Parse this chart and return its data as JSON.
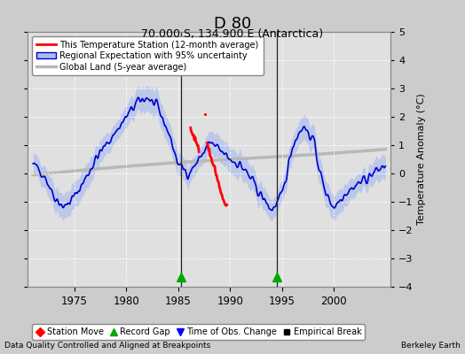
{
  "title": "D 80",
  "subtitle": "70.000 S, 134.900 E (Antarctica)",
  "ylabel": "Temperature Anomaly (°C)",
  "footer_left": "Data Quality Controlled and Aligned at Breakpoints",
  "footer_right": "Berkeley Earth",
  "xlim": [
    1970.5,
    2005.5
  ],
  "ylim": [
    -4,
    5
  ],
  "yticks": [
    -4,
    -3,
    -2,
    -1,
    0,
    1,
    2,
    3,
    4,
    5
  ],
  "xticks": [
    1975,
    1980,
    1985,
    1990,
    1995,
    2000
  ],
  "bg_color": "#cccccc",
  "plot_bg_color": "#e0e0e0",
  "vertical_line_x1": 1985.25,
  "vertical_line_x2": 1994.5,
  "green_tri_x1": 1985.25,
  "green_tri_x2": 1994.5,
  "legend_items": [
    {
      "label": "This Temperature Station (12-month average)",
      "color": "#ff0000",
      "lw": 2
    },
    {
      "label": "Regional Expectation with 95% uncertainty",
      "color": "#0000cc",
      "lw": 1.5
    },
    {
      "label": "Global Land (5-year average)",
      "color": "#b0b0b0",
      "lw": 2
    }
  ],
  "legend2_items": [
    {
      "label": "Station Move",
      "marker": "D",
      "color": "red"
    },
    {
      "label": "Record Gap",
      "marker": "^",
      "color": "green"
    },
    {
      "label": "Time of Obs. Change",
      "marker": "v",
      "color": "blue"
    },
    {
      "label": "Empirical Break",
      "marker": "s",
      "color": "black"
    }
  ]
}
